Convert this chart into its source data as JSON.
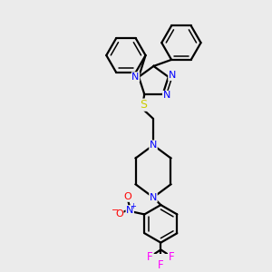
{
  "background_color": "#ebebeb",
  "atom_colors": {
    "N": "#0000ff",
    "S": "#cccc00",
    "O": "#ff0000",
    "F": "#ff00ff",
    "bond": "#000000"
  },
  "figsize": [
    3.0,
    3.0
  ],
  "dpi": 100
}
